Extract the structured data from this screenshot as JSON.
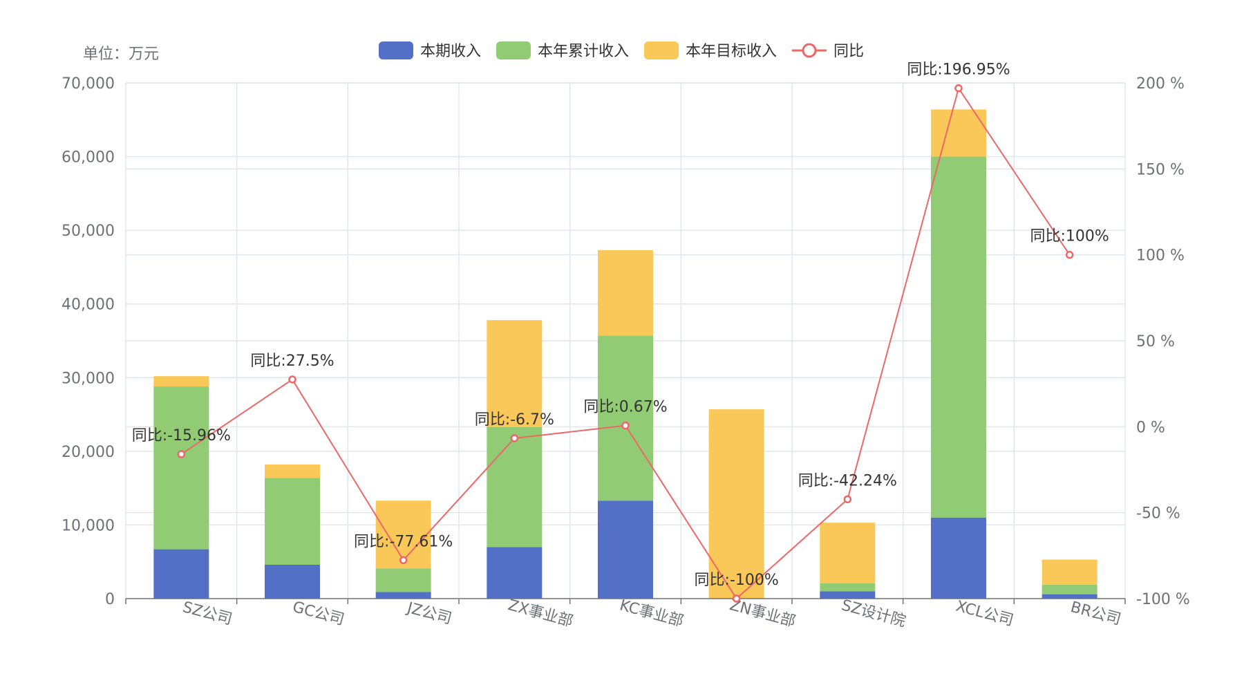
{
  "unit_label": "单位：万元",
  "legend": [
    {
      "label": "本期收入",
      "color": "#5470c6",
      "kind": "bar"
    },
    {
      "label": "本年累计收入",
      "color": "#91cc75",
      "kind": "bar"
    },
    {
      "label": "本年目标收入",
      "color": "#fac858",
      "kind": "bar"
    },
    {
      "label": "同比",
      "color": "#ee6666",
      "kind": "line"
    }
  ],
  "chart_data": {
    "type": "bar",
    "categories": [
      "SZ公司",
      "GC公司",
      "JZ公司",
      "ZX事业部",
      "KC事业部",
      "ZN事业部",
      "SZ设计院",
      "XCL公司",
      "BR公司"
    ],
    "series": [
      {
        "name": "本期收入",
        "type": "bar",
        "stack": "total",
        "color": "#5470c6",
        "values": [
          6700,
          4600,
          900,
          7000,
          13300,
          0,
          1000,
          11000,
          600
        ]
      },
      {
        "name": "本年累计收入",
        "type": "bar",
        "stack": "total",
        "color": "#91cc75",
        "values": [
          22100,
          11800,
          3200,
          16300,
          22400,
          0,
          1100,
          49000,
          1300
        ]
      },
      {
        "name": "本年目标收入",
        "type": "bar",
        "stack": "total",
        "color": "#fac858",
        "values": [
          1400,
          1800,
          9200,
          14500,
          11600,
          25700,
          8200,
          6400,
          3400
        ]
      },
      {
        "name": "同比",
        "type": "line",
        "axis": "right",
        "color": "#ee6666",
        "values": [
          -15.96,
          27.5,
          -77.61,
          -6.7,
          0.67,
          -100,
          -42.24,
          196.95,
          100
        ],
        "labels": [
          "同比:-15.96%",
          "同比:27.5%",
          "同比:-77.61%",
          "同比:-6.7%",
          "同比:0.67%",
          "同比:-100%",
          "同比:-42.24%",
          "同比:196.95%",
          "同比:100%"
        ]
      }
    ],
    "y_left": {
      "min": 0,
      "max": 70000,
      "ticks": [
        "0",
        "10,000",
        "20,000",
        "30,000",
        "40,000",
        "50,000",
        "60,000",
        "70,000"
      ]
    },
    "y_right": {
      "min": -100,
      "max": 200,
      "ticks": [
        "-100 %",
        "-50 %",
        "0 %",
        "50 %",
        "100 %",
        "150 %",
        "200 %"
      ]
    },
    "grid": true,
    "legend_position": "top-center"
  }
}
